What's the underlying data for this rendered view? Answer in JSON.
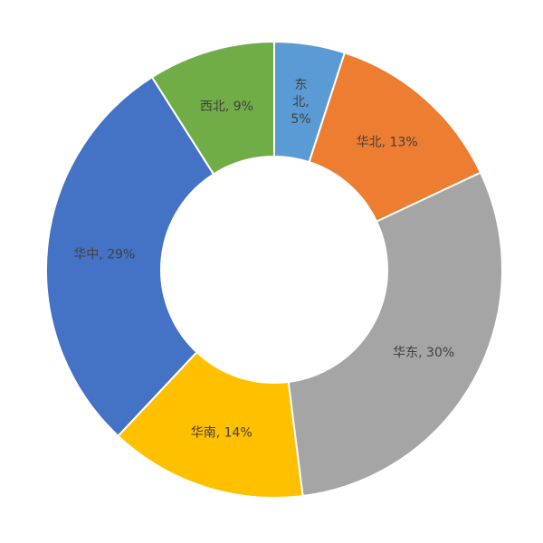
{
  "chart_data": {
    "type": "pie",
    "donut": true,
    "legend": "none",
    "slices": [
      {
        "name": "东北",
        "value": 5,
        "label_lines": [
          "东",
          "北,",
          "5%"
        ],
        "color": "#5b9bd5"
      },
      {
        "name": "华北",
        "value": 13,
        "label_lines": [
          "华北, 13%"
        ],
        "color": "#ed7d31"
      },
      {
        "name": "华东",
        "value": 30,
        "label_lines": [
          "华东, 30%"
        ],
        "color": "#a5a5a5"
      },
      {
        "name": "华南",
        "value": 14,
        "label_lines": [
          "华南, 14%"
        ],
        "color": "#ffc000"
      },
      {
        "name": "华中",
        "value": 29,
        "label_lines": [
          "华中, 29%"
        ],
        "color": "#4472c4"
      },
      {
        "name": "西北",
        "value": 9,
        "label_lines": [
          "西北, 9%"
        ],
        "color": "#70ad47"
      }
    ]
  }
}
